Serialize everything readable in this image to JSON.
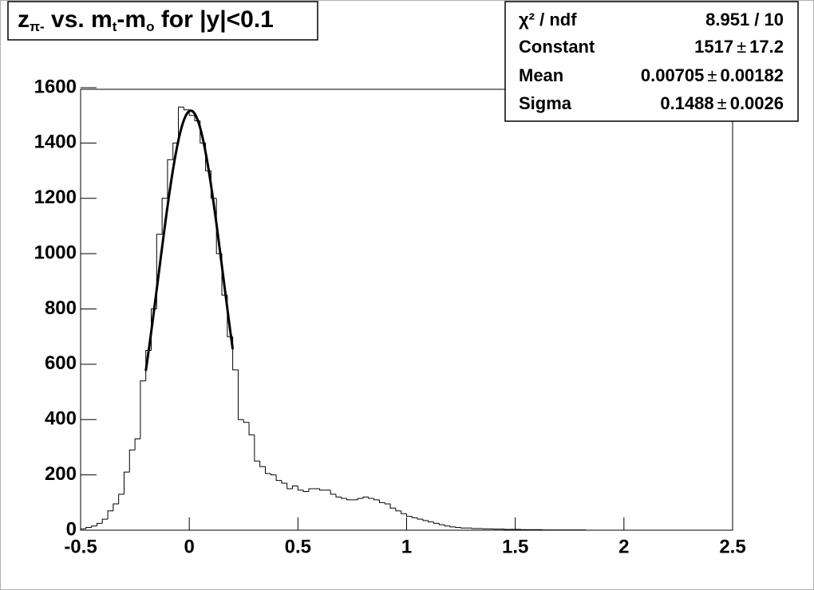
{
  "chart_data": {
    "type": "histogram",
    "title": [
      {
        "text": "z"
      },
      {
        "text": "π-",
        "sub": true
      },
      {
        "text": " vs. m"
      },
      {
        "text": "t",
        "sub": true
      },
      {
        "text": "-m"
      },
      {
        "text": "o",
        "sub": true
      },
      {
        "text": " for |y|<0.1"
      }
    ],
    "bins": [
      -0.5,
      -0.475,
      -0.45,
      -0.425,
      -0.4,
      -0.375,
      -0.35,
      -0.325,
      -0.3,
      -0.275,
      -0.25,
      -0.225,
      -0.2,
      -0.175,
      -0.15,
      -0.125,
      -0.1,
      -0.075,
      -0.05,
      -0.025,
      0,
      0.025,
      0.05,
      0.075,
      0.1,
      0.125,
      0.15,
      0.175,
      0.2,
      0.225,
      0.25,
      0.275,
      0.3,
      0.325,
      0.35,
      0.375,
      0.4,
      0.425,
      0.45,
      0.475,
      0.5,
      0.525,
      0.55,
      0.575,
      0.6,
      0.625,
      0.65,
      0.675,
      0.7,
      0.725,
      0.75,
      0.775,
      0.8,
      0.825,
      0.85,
      0.875,
      0.9,
      0.925,
      0.95,
      0.975,
      1,
      1.025,
      1.05,
      1.075,
      1.1,
      1.125,
      1.15,
      1.175,
      1.2,
      1.225,
      1.25,
      1.275,
      1.3,
      1.325,
      1.35,
      1.375,
      1.4,
      1.425,
      1.45,
      1.475,
      1.5,
      1.525,
      1.55,
      1.575,
      1.6,
      1.625,
      1.65,
      1.675,
      1.7,
      1.725,
      1.75,
      1.775,
      1.8,
      1.825,
      1.85,
      1.875,
      1.9,
      1.925,
      1.95,
      1.975,
      2,
      2.025,
      2.05,
      2.075,
      2.1,
      2.125,
      2.15,
      2.175,
      2.2,
      2.225,
      2.25,
      2.275,
      2.3,
      2.325,
      2.35,
      2.375,
      2.4,
      2.425,
      2.45,
      2.475,
      2.5
    ],
    "counts": [
      5,
      10,
      15,
      25,
      40,
      70,
      95,
      130,
      210,
      290,
      330,
      540,
      650,
      800,
      1070,
      1200,
      1340,
      1400,
      1530,
      1520,
      1500,
      1480,
      1400,
      1300,
      1200,
      1000,
      850,
      700,
      580,
      400,
      390,
      345,
      250,
      230,
      205,
      200,
      180,
      170,
      150,
      160,
      145,
      140,
      150,
      150,
      145,
      145,
      130,
      120,
      115,
      110,
      110,
      115,
      120,
      115,
      110,
      100,
      95,
      80,
      70,
      60,
      50,
      45,
      40,
      35,
      30,
      25,
      20,
      15,
      12,
      10,
      8,
      8,
      6,
      6,
      5,
      5,
      4,
      4,
      3,
      3,
      3,
      2,
      2,
      2,
      2,
      1,
      1,
      1,
      1,
      1,
      1,
      1,
      1,
      0,
      0,
      0,
      0,
      0,
      0,
      0,
      0,
      0,
      0,
      0,
      0,
      0,
      0,
      0,
      0,
      0,
      0,
      0,
      0,
      0,
      0,
      0,
      0,
      0,
      0,
      0
    ],
    "color": "#000000",
    "xlim": [
      -0.5,
      2.5
    ],
    "ylim": [
      0,
      1600
    ],
    "xticks": [
      -0.5,
      0,
      0.5,
      1,
      1.5,
      2,
      2.5
    ],
    "yticks": [
      0,
      200,
      400,
      600,
      800,
      1000,
      1200,
      1400,
      1600
    ],
    "fit_range": [
      -0.2,
      0.2
    ],
    "stats": {
      "chi2_label": "χ² / ndf",
      "chi2": "8.951 / 10",
      "pm": "±",
      "rows": [
        {
          "name": "Constant",
          "value": 1517,
          "error": 17.2
        },
        {
          "name": "Mean",
          "value": 0.00705,
          "error": 0.00182
        },
        {
          "name": "Sigma",
          "value": 0.1488,
          "error": 0.0026
        }
      ]
    }
  }
}
